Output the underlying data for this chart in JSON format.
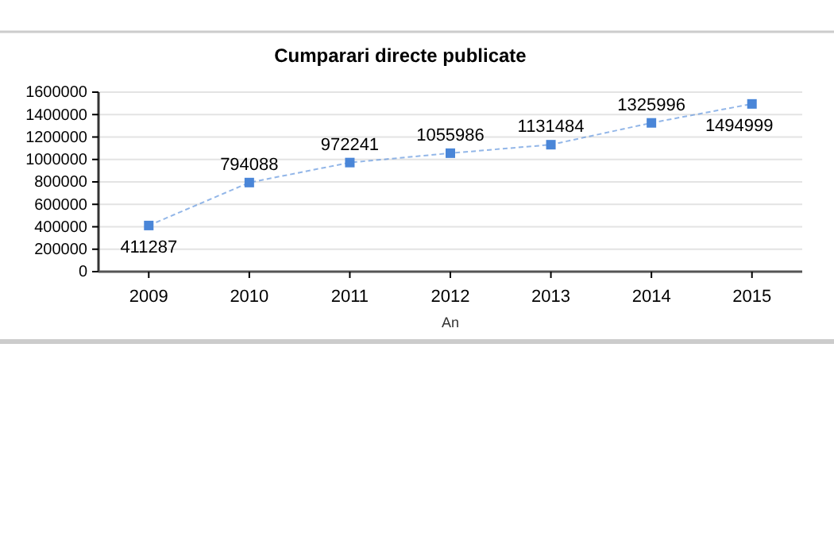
{
  "chart_data": {
    "type": "line",
    "title": "Cumparari directe publicate",
    "xlabel": "An",
    "categories": [
      "2009",
      "2010",
      "2011",
      "2012",
      "2013",
      "2014",
      "2015"
    ],
    "series": [
      {
        "color": "#4a86d8",
        "values": [
          411287,
          794088,
          972241,
          1055986,
          1131484,
          1325996,
          1494999
        ]
      }
    ],
    "ylim": [
      0,
      1600000
    ],
    "yticks": [
      0,
      200000,
      400000,
      600000,
      800000,
      1000000,
      1200000,
      1400000,
      1600000
    ],
    "grid": "y",
    "data_labels": true,
    "marker": "square",
    "line_style": "dashed"
  }
}
